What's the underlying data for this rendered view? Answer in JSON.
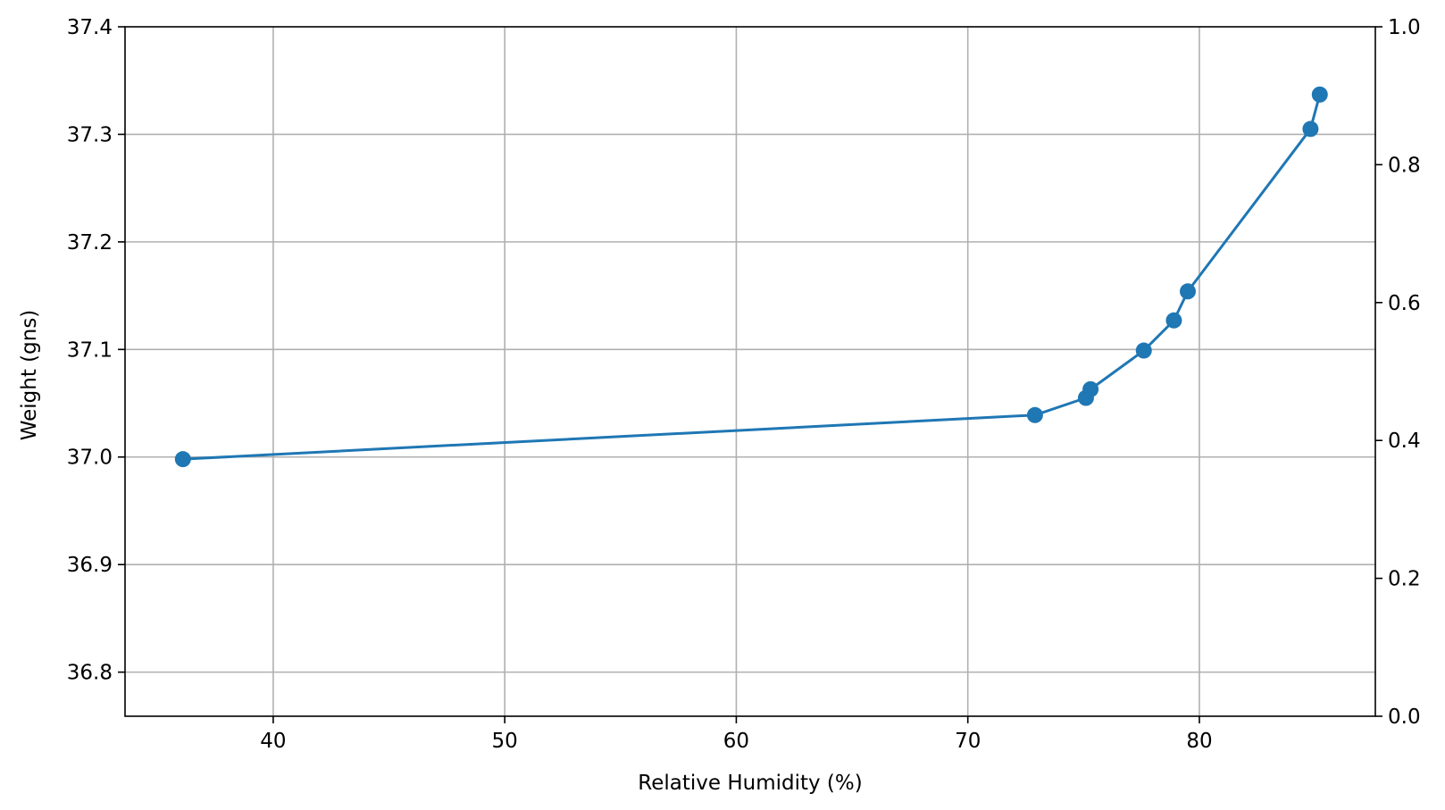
{
  "chart_data": {
    "type": "line",
    "title": "",
    "xlabel": "Relative Humidity (%)",
    "ylabel": "Weight (gns)",
    "xlim": [
      33.6,
      87.6
    ],
    "ylim": [
      36.759,
      37.4
    ],
    "y2lim": [
      0.0,
      1.0
    ],
    "xticks": [
      40,
      50,
      60,
      70,
      80
    ],
    "yticks": [
      36.8,
      36.9,
      37.0,
      37.1,
      37.2,
      37.3,
      37.4
    ],
    "y2ticks": [
      0.0,
      0.2,
      0.4,
      0.6,
      0.8,
      1.0
    ],
    "xtick_labels": [
      "40",
      "50",
      "60",
      "70",
      "80"
    ],
    "ytick_labels": [
      "36.8",
      "36.9",
      "37.0",
      "37.1",
      "37.2",
      "37.3",
      "37.4"
    ],
    "y2tick_labels": [
      "0.0",
      "0.2",
      "0.4",
      "0.6",
      "0.8",
      "1.0"
    ],
    "grid": true,
    "series": [
      {
        "x": [
          36.1,
          72.9,
          75.1,
          75.3,
          77.6,
          78.9,
          79.5,
          84.8,
          85.2
        ],
        "y": [
          36.998,
          37.039,
          37.055,
          37.063,
          37.099,
          37.127,
          37.154,
          37.305,
          37.337
        ],
        "color": "#1f77b4",
        "marker": "circle"
      }
    ]
  }
}
